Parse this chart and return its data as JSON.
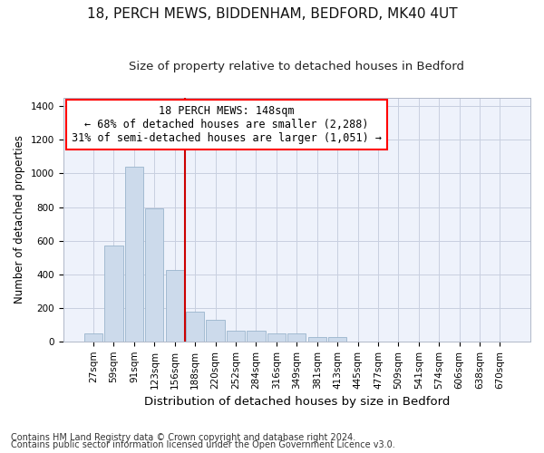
{
  "title1": "18, PERCH MEWS, BIDDENHAM, BEDFORD, MK40 4UT",
  "title2": "Size of property relative to detached houses in Bedford",
  "xlabel": "Distribution of detached houses by size in Bedford",
  "ylabel": "Number of detached properties",
  "footnote1": "Contains HM Land Registry data © Crown copyright and database right 2024.",
  "footnote2": "Contains public sector information licensed under the Open Government Licence v3.0.",
  "annotation_line1": "18 PERCH MEWS: 148sqm",
  "annotation_line2": "← 68% of detached houses are smaller (2,288)",
  "annotation_line3": "31% of semi-detached houses are larger (1,051) →",
  "bar_color": "#ccdaeb",
  "bar_edge_color": "#9ab4cc",
  "red_line_color": "#cc0000",
  "categories": [
    "27sqm",
    "59sqm",
    "91sqm",
    "123sqm",
    "156sqm",
    "188sqm",
    "220sqm",
    "252sqm",
    "284sqm",
    "316sqm",
    "349sqm",
    "381sqm",
    "413sqm",
    "445sqm",
    "477sqm",
    "509sqm",
    "541sqm",
    "574sqm",
    "606sqm",
    "638sqm",
    "670sqm"
  ],
  "values": [
    48,
    570,
    1040,
    790,
    425,
    178,
    128,
    65,
    65,
    48,
    48,
    28,
    28,
    0,
    0,
    0,
    0,
    0,
    0,
    0,
    0
  ],
  "red_line_index": 4,
  "ylim": [
    0,
    1450
  ],
  "yticks": [
    0,
    200,
    400,
    600,
    800,
    1000,
    1200,
    1400
  ],
  "bg_color": "#ffffff",
  "plot_bg_color": "#eef2fb",
  "grid_color": "#c8cfe0",
  "title1_fontsize": 11,
  "title2_fontsize": 9.5,
  "ylabel_fontsize": 8.5,
  "xlabel_fontsize": 9.5,
  "annotation_fontsize": 8.5,
  "tick_fontsize": 7.5,
  "footnote_fontsize": 7
}
